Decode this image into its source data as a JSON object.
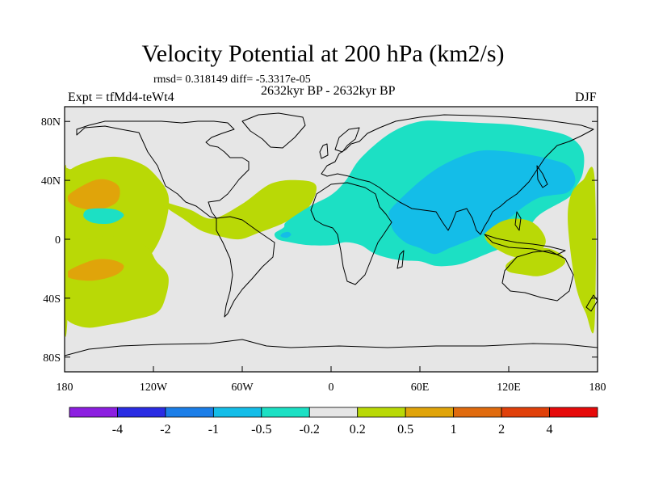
{
  "title": "Velocity Potential at 200 hPa (km2/s)",
  "stats": "rmsd= 0.318149 diff= -5.3317e-05",
  "period": "2632kyr BP - 2632kyr BP",
  "expt": "Expt = tfMd4-teWt4",
  "season": "DJF",
  "chart_data": {
    "type": "filled-contour map",
    "projection": "cylindrical equidistant",
    "variable": "Velocity Potential at 200 hPa",
    "units": "km2/s",
    "x_ticks": [
      "180",
      "120W",
      "60W",
      "0",
      "60E",
      "120E",
      "180"
    ],
    "y_ticks": [
      "80N",
      "40N",
      "0",
      "40S",
      "80S"
    ],
    "xlim": [
      -180,
      180
    ],
    "ylim": [
      -90,
      90
    ],
    "colorbar": {
      "labels": [
        "-4",
        "-2",
        "-1",
        "-0.5",
        "-0.2",
        "0.2",
        "0.5",
        "1",
        "2",
        "4"
      ],
      "colors": [
        "#8c1fe0",
        "#2a2ce3",
        "#1b7ee8",
        "#14bde8",
        "#1ce0c4",
        "#e6e6e6",
        "#b9d906",
        "#e0a40a",
        "#e06b0e",
        "#e0400a",
        "#e60a0a"
      ]
    },
    "regions": [
      {
        "level": 0.3,
        "color": "#b9d906",
        "lon": [
          -180,
          -175,
          -160,
          -145,
          -130,
          -120,
          -110,
          -112,
          -120,
          -132,
          -150,
          -168,
          -180
        ],
        "lat": [
          40,
          48,
          54,
          56,
          52,
          45,
          30,
          10,
          -8,
          -20,
          -30,
          -38,
          -36
        ]
      },
      {
        "level": 0.3,
        "color": "#b9d906",
        "lon": [
          -180,
          -170,
          -155,
          -140,
          -128,
          -122,
          -118,
          -110,
          -112,
          -118,
          -135,
          -150,
          -165,
          -178,
          -180
        ],
        "lat": [
          -8,
          -2,
          2,
          1,
          -3,
          -8,
          -15,
          -25,
          -40,
          -50,
          -55,
          -58,
          -60,
          -55,
          -45
        ]
      },
      {
        "level": 0.3,
        "color": "#b9d906",
        "lon": [
          -118,
          -108,
          -95,
          -80,
          -60,
          -40,
          -20,
          -10,
          -15,
          -30,
          -50,
          -62,
          -75,
          -88,
          -100,
          -112
        ],
        "lat": [
          28,
          24,
          20,
          14,
          24,
          38,
          40,
          36,
          22,
          12,
          4,
          0,
          2,
          6,
          14,
          22
        ]
      },
      {
        "level": 0.7,
        "color": "#e0a40a",
        "lon": [
          -175,
          -160,
          -150,
          -143,
          -145,
          -158,
          -172,
          -178
        ],
        "lat": [
          32,
          40,
          40,
          35,
          25,
          20,
          22,
          27
        ]
      },
      {
        "level": 0.7,
        "color": "#e0a40a",
        "lon": [
          -175,
          -160,
          -148,
          -140,
          -145,
          -160,
          -174,
          -179
        ],
        "lat": [
          -20,
          -14,
          -14,
          -18,
          -24,
          -28,
          -27,
          -24
        ]
      },
      {
        "level": -0.3,
        "color": "#1ce0c4",
        "lon": [
          -165,
          -155,
          -145,
          -140,
          -148,
          -160,
          -167
        ],
        "lat": [
          20,
          21,
          20,
          16,
          11,
          11,
          15
        ]
      },
      {
        "level": -0.3,
        "color": "#1ce0c4",
        "lon": [
          -30,
          -15,
          0,
          10,
          20,
          40,
          60,
          80,
          100,
          120,
          140,
          160,
          170,
          170,
          165,
          160,
          140,
          130,
          120,
          105,
          90,
          80,
          70,
          60,
          45,
          30,
          20,
          10,
          0,
          -15,
          -28,
          -36,
          -38,
          -32
        ],
        "lat": [
          12,
          22,
          30,
          40,
          55,
          72,
          80,
          80,
          79,
          78,
          75,
          70,
          60,
          45,
          35,
          28,
          16,
          2,
          -4,
          -10,
          -16,
          -18,
          -18,
          -15,
          -14,
          -10,
          -4,
          -2,
          -4,
          -4,
          -2,
          0,
          4,
          8
        ]
      },
      {
        "level": -0.7,
        "color": "#14bde8",
        "lon": [
          40,
          55,
          70,
          85,
          100,
          115,
          130,
          145,
          160,
          165,
          160,
          150,
          140,
          130,
          120,
          110,
          100,
          90,
          80,
          70,
          60,
          50,
          42,
          40
        ],
        "lat": [
          20,
          35,
          47,
          55,
          60,
          60,
          58,
          55,
          50,
          40,
          32,
          30,
          28,
          22,
          14,
          8,
          2,
          -2,
          -6,
          -10,
          -6,
          -2,
          6,
          14
        ]
      },
      {
        "level": -0.7,
        "color": "#14bde8",
        "lon": [
          -33,
          -29,
          -27,
          -30,
          -34
        ],
        "lat": [
          4,
          5,
          3,
          1,
          2
        ]
      },
      {
        "level": 0.3,
        "color": "#b9d906",
        "lon": [
          105,
          115,
          125,
          135,
          142,
          145,
          140,
          135,
          128,
          118,
          108,
          104
        ],
        "lat": [
          5,
          12,
          14,
          12,
          6,
          -2,
          -10,
          -14,
          -13,
          -10,
          -4,
          1
        ]
      },
      {
        "level": 0.3,
        "color": "#b9d906",
        "lon": [
          120,
          130,
          140,
          150,
          158,
          155,
          145,
          132,
          122,
          118
        ],
        "lat": [
          -22,
          -24,
          -25,
          -22,
          -16,
          -10,
          -6,
          -8,
          -14,
          -18
        ]
      },
      {
        "level": 0.3,
        "color": "#b9d906",
        "lon": [
          178,
          170,
          162,
          160,
          165,
          172,
          178
        ],
        "lat": [
          42,
          40,
          30,
          10,
          -30,
          -50,
          -58
        ]
      },
      {
        "level": 0.3,
        "color": "#b9d906",
        "lon": [
          -180,
          -178,
          -178,
          -180
        ],
        "lat": [
          42,
          35,
          -50,
          -58
        ]
      }
    ]
  }
}
